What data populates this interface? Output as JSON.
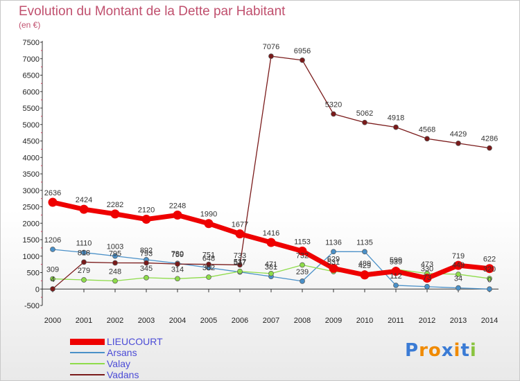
{
  "title": "Evolution du Montant de la Dette par Habitant",
  "subtitle": "(en €)",
  "logo": "Proxiti",
  "chart_data": {
    "type": "line",
    "title": "Evolution du Montant de la Dette par Habitant",
    "subtitle": "(en €)",
    "xlabel": "",
    "ylabel": "",
    "x": [
      2000,
      2001,
      2002,
      2003,
      2004,
      2005,
      2006,
      2007,
      2008,
      2009,
      2010,
      2011,
      2012,
      2013,
      2014
    ],
    "y_ticks": [
      -500,
      0,
      500,
      1000,
      1500,
      2000,
      2500,
      3000,
      3500,
      4000,
      4500,
      5000,
      5500,
      6000,
      6500,
      7000,
      7500
    ],
    "ylim": [
      -500,
      7500
    ],
    "grid": false,
    "legend_position": "bottom-left",
    "series": [
      {
        "name": "LIEUCOURT",
        "color": "#ee0000",
        "values": [
          2636,
          2424,
          2282,
          2120,
          2248,
          1990,
          1677,
          1416,
          1153,
          629,
          429,
          539,
          330,
          719,
          622
        ]
      },
      {
        "name": "Arsans",
        "color": "#4a90c8",
        "values": [
          1206,
          1110,
          1003,
          892,
          780,
          648,
          517,
          381,
          239,
          1136,
          1135,
          112,
          73,
          34,
          0
        ]
      },
      {
        "name": "Valay",
        "color": "#8edc4a",
        "values": [
          309,
          279,
          248,
          345,
          314,
          362,
          537,
          471,
          732,
          531,
          489,
          599,
          473,
          449,
          320
        ]
      },
      {
        "name": "Vadans",
        "color": "#7a1a1a",
        "values": [
          4,
          818,
          795,
          793,
          759,
          751,
          733,
          7076,
          6956,
          5320,
          5062,
          4918,
          4568,
          4429,
          4286
        ]
      }
    ]
  }
}
